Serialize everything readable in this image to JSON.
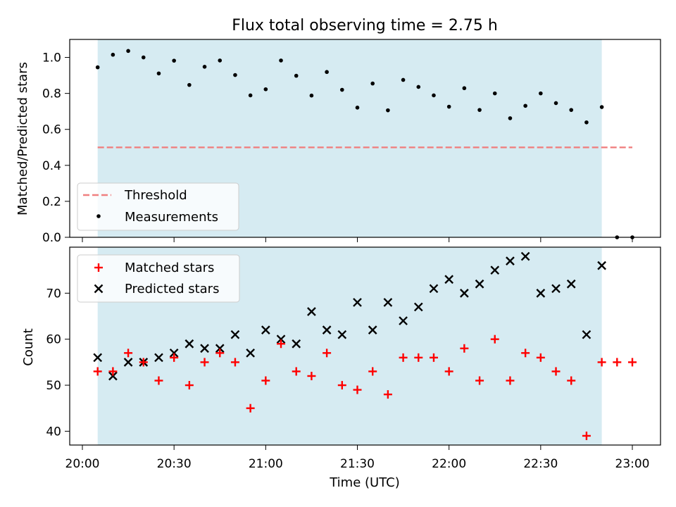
{
  "chart_data": [
    {
      "type": "scatter",
      "title": "Flux total observing time = 2.75 h",
      "xlabel": "",
      "ylabel": "Matched/Predicted stars",
      "xlim": [
        "20:00",
        "23:00"
      ],
      "ylim": [
        0.0,
        1.1
      ],
      "yticks": [
        0.0,
        0.2,
        0.4,
        0.6,
        0.8,
        1.0
      ],
      "ytick_labels": [
        "0.0",
        "0.2",
        "0.4",
        "0.6",
        "0.8",
        "1.0"
      ],
      "shaded_span": {
        "start": "20:05",
        "end": "22:50",
        "color": "#add8e6"
      },
      "threshold": {
        "name": "Threshold",
        "value": 0.5,
        "x_start": "20:05",
        "x_end": "23:00",
        "color": "#f08080",
        "style": "dashed"
      },
      "series": [
        {
          "name": "Measurements",
          "marker": "dot",
          "color": "#000000",
          "points": [
            [
              "20:05",
              0.945
            ],
            [
              "20:10",
              1.015
            ],
            [
              "20:15",
              1.036
            ],
            [
              "20:20",
              1.0
            ],
            [
              "20:25",
              0.911
            ],
            [
              "20:30",
              0.982
            ],
            [
              "20:35",
              0.847
            ],
            [
              "20:40",
              0.948
            ],
            [
              "20:45",
              0.983
            ],
            [
              "20:50",
              0.902
            ],
            [
              "20:55",
              0.789
            ],
            [
              "21:00",
              0.823
            ],
            [
              "21:05",
              0.983
            ],
            [
              "21:10",
              0.898
            ],
            [
              "21:15",
              0.788
            ],
            [
              "21:20",
              0.919
            ],
            [
              "21:25",
              0.82
            ],
            [
              "21:30",
              0.721
            ],
            [
              "21:35",
              0.855
            ],
            [
              "21:40",
              0.706
            ],
            [
              "21:45",
              0.875
            ],
            [
              "21:50",
              0.836
            ],
            [
              "21:55",
              0.789
            ],
            [
              "22:00",
              0.726
            ],
            [
              "22:05",
              0.829
            ],
            [
              "22:10",
              0.708
            ],
            [
              "22:15",
              0.8
            ],
            [
              "22:20",
              0.662
            ],
            [
              "22:25",
              0.731
            ],
            [
              "22:30",
              0.8
            ],
            [
              "22:35",
              0.746
            ],
            [
              "22:40",
              0.708
            ],
            [
              "22:45",
              0.639
            ],
            [
              "22:50",
              0.724
            ],
            [
              "22:55",
              0.0
            ],
            [
              "23:00",
              0.0
            ]
          ]
        }
      ],
      "legend": {
        "location": "lower-left",
        "entries": [
          "Threshold",
          "Measurements"
        ]
      }
    },
    {
      "type": "scatter",
      "title": "",
      "xlabel": "Time (UTC)",
      "ylabel": "Count",
      "xlim": [
        "20:00",
        "23:00"
      ],
      "ylim": [
        37,
        80
      ],
      "yticks": [
        40,
        50,
        60,
        70
      ],
      "ytick_labels": [
        "40",
        "50",
        "60",
        "70"
      ],
      "xticks": [
        "20:00",
        "20:30",
        "21:00",
        "21:30",
        "22:00",
        "22:30",
        "23:00"
      ],
      "xtick_labels": [
        "20:00",
        "20:30",
        "21:00",
        "21:30",
        "22:00",
        "22:30",
        "23:00"
      ],
      "shaded_span": {
        "start": "20:05",
        "end": "22:50",
        "color": "#add8e6"
      },
      "series": [
        {
          "name": "Matched stars",
          "marker": "plus",
          "color": "#ff0000",
          "points": [
            [
              "20:05",
              53
            ],
            [
              "20:10",
              53
            ],
            [
              "20:15",
              57
            ],
            [
              "20:20",
              55
            ],
            [
              "20:25",
              51
            ],
            [
              "20:30",
              56
            ],
            [
              "20:35",
              50
            ],
            [
              "20:40",
              55
            ],
            [
              "20:45",
              57
            ],
            [
              "20:50",
              55
            ],
            [
              "20:55",
              45
            ],
            [
              "21:00",
              51
            ],
            [
              "21:05",
              59
            ],
            [
              "21:10",
              53
            ],
            [
              "21:15",
              52
            ],
            [
              "21:20",
              57
            ],
            [
              "21:25",
              50
            ],
            [
              "21:30",
              49
            ],
            [
              "21:35",
              53
            ],
            [
              "21:40",
              48
            ],
            [
              "21:45",
              56
            ],
            [
              "21:50",
              56
            ],
            [
              "21:55",
              56
            ],
            [
              "22:00",
              53
            ],
            [
              "22:05",
              58
            ],
            [
              "22:10",
              51
            ],
            [
              "22:15",
              60
            ],
            [
              "22:20",
              51
            ],
            [
              "22:25",
              57
            ],
            [
              "22:30",
              56
            ],
            [
              "22:35",
              53
            ],
            [
              "22:40",
              51
            ],
            [
              "22:45",
              39
            ],
            [
              "22:50",
              55
            ],
            [
              "22:55",
              55
            ],
            [
              "23:00",
              55
            ]
          ]
        },
        {
          "name": "Predicted stars",
          "marker": "x",
          "color": "#000000",
          "points": [
            [
              "20:05",
              56
            ],
            [
              "20:10",
              52
            ],
            [
              "20:15",
              55
            ],
            [
              "20:20",
              55
            ],
            [
              "20:25",
              56
            ],
            [
              "20:30",
              57
            ],
            [
              "20:35",
              59
            ],
            [
              "20:40",
              58
            ],
            [
              "20:45",
              58
            ],
            [
              "20:50",
              61
            ],
            [
              "20:55",
              57
            ],
            [
              "21:00",
              62
            ],
            [
              "21:05",
              60
            ],
            [
              "21:10",
              59
            ],
            [
              "21:15",
              66
            ],
            [
              "21:20",
              62
            ],
            [
              "21:25",
              61
            ],
            [
              "21:30",
              68
            ],
            [
              "21:35",
              62
            ],
            [
              "21:40",
              68
            ],
            [
              "21:45",
              64
            ],
            [
              "21:50",
              67
            ],
            [
              "21:55",
              71
            ],
            [
              "22:00",
              73
            ],
            [
              "22:05",
              70
            ],
            [
              "22:10",
              72
            ],
            [
              "22:15",
              75
            ],
            [
              "22:20",
              77
            ],
            [
              "22:25",
              78
            ],
            [
              "22:30",
              70
            ],
            [
              "22:35",
              71
            ],
            [
              "22:40",
              72
            ],
            [
              "22:45",
              61
            ],
            [
              "22:50",
              76
            ]
          ]
        }
      ],
      "legend": {
        "location": "top-left",
        "entries": [
          "Matched stars",
          "Predicted stars"
        ]
      }
    }
  ]
}
